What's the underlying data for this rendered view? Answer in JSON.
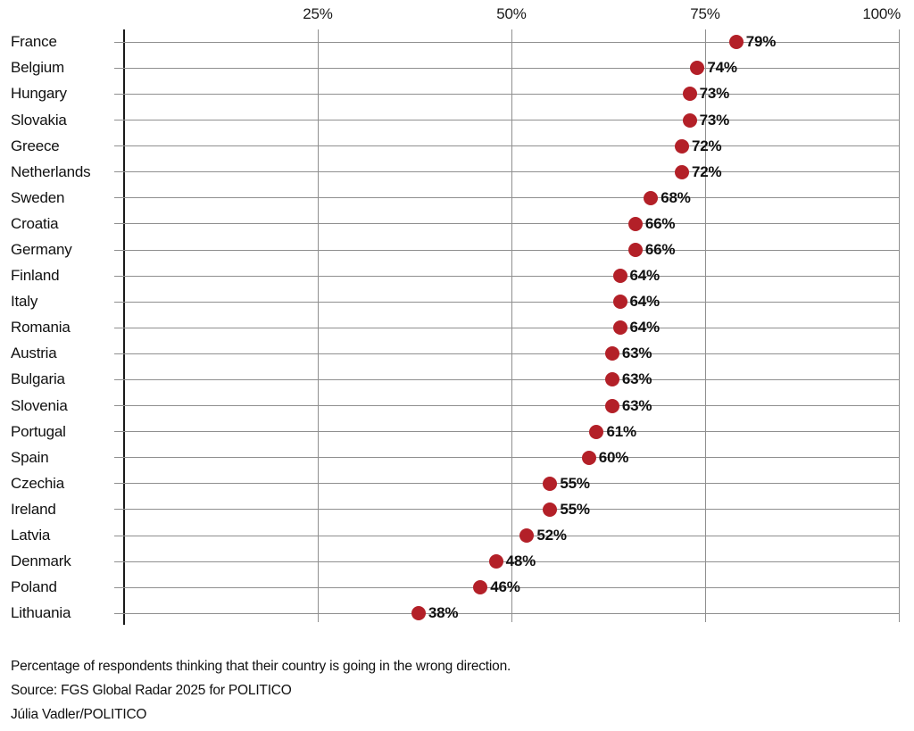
{
  "chart_data": {
    "type": "scatter",
    "subtype": "dot-plot",
    "title": "",
    "categories": [
      "France",
      "Belgium",
      "Hungary",
      "Slovakia",
      "Greece",
      "Netherlands",
      "Sweden",
      "Croatia",
      "Germany",
      "Finland",
      "Italy",
      "Romania",
      "Austria",
      "Bulgaria",
      "Slovenia",
      "Portugal",
      "Spain",
      "Czechia",
      "Ireland",
      "Latvia",
      "Denmark",
      "Poland",
      "Lithuania"
    ],
    "values": [
      79,
      74,
      73,
      73,
      72,
      72,
      68,
      66,
      66,
      64,
      64,
      64,
      63,
      63,
      63,
      61,
      60,
      55,
      55,
      52,
      48,
      46,
      38
    ],
    "display_values": [
      "79%",
      "74%",
      "73%",
      "73%",
      "72%",
      "72%",
      "68%",
      "66%",
      "66%",
      "64%",
      "64%",
      "64%",
      "63%",
      "63%",
      "63%",
      "61%",
      "60%",
      "55%",
      "55%",
      "52%",
      "48%",
      "46%",
      "38%"
    ],
    "value_suffix": "%",
    "x_axis": {
      "position": "top",
      "range": [
        0,
        100
      ],
      "tick_values": [
        25,
        50,
        75,
        100
      ],
      "ticks": [
        "25%",
        "50%",
        "75%",
        "100%"
      ]
    },
    "grid": true,
    "legend": "none"
  },
  "colors": {
    "dot": "#b32028",
    "gridline": "#8f8f8f",
    "axis": "#1a1a1a",
    "text": "#111111",
    "background": "#ffffff"
  },
  "footer": {
    "note": "Percentage of respondents thinking that their country is going in the wrong direction.",
    "source": "Source: FGS Global Radar 2025 for POLITICO",
    "credit": "Júlia Vadler/POLITICO"
  }
}
